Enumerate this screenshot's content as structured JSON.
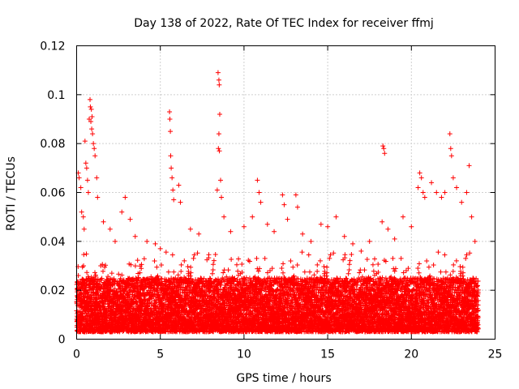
{
  "chart_data": {
    "type": "scatter",
    "title": "Day 138 of 2022, Rate Of TEC Index for receiver ffmj",
    "xlabel": "GPS time / hours",
    "ylabel": "ROTI / TECUs",
    "xlim": [
      0,
      25
    ],
    "ylim": [
      0,
      0.12
    ],
    "xticks": [
      "0",
      "5",
      "10",
      "15",
      "20",
      "25"
    ],
    "yticks": [
      "0",
      "0.02",
      "0.04",
      "0.06",
      "0.08",
      "0.1",
      "0.12"
    ],
    "grid": true,
    "marker": "+",
    "color": "#ff0000",
    "x_range_of_data": [
      0,
      24
    ],
    "baseline_band": [
      0.003,
      0.025
    ],
    "points": [
      [
        0.1,
        0.068
      ],
      [
        0.15,
        0.066
      ],
      [
        0.25,
        0.062
      ],
      [
        0.3,
        0.052
      ],
      [
        0.4,
        0.05
      ],
      [
        0.45,
        0.045
      ],
      [
        0.5,
        0.081
      ],
      [
        0.55,
        0.072
      ],
      [
        0.6,
        0.07
      ],
      [
        0.65,
        0.065
      ],
      [
        0.7,
        0.06
      ],
      [
        0.75,
        0.09
      ],
      [
        0.8,
        0.098
      ],
      [
        0.82,
        0.095
      ],
      [
        0.85,
        0.089
      ],
      [
        0.9,
        0.086
      ],
      [
        0.95,
        0.084
      ],
      [
        1.0,
        0.08
      ],
      [
        1.05,
        0.078
      ],
      [
        1.1,
        0.075
      ],
      [
        1.2,
        0.066
      ],
      [
        1.25,
        0.058
      ],
      [
        0.88,
        0.094
      ],
      [
        0.92,
        0.091
      ],
      [
        1.6,
        0.048
      ],
      [
        2.0,
        0.045
      ],
      [
        2.3,
        0.04
      ],
      [
        2.7,
        0.052
      ],
      [
        2.9,
        0.058
      ],
      [
        3.2,
        0.049
      ],
      [
        3.5,
        0.042
      ],
      [
        4.2,
        0.04
      ],
      [
        4.7,
        0.039
      ],
      [
        5.0,
        0.037
      ],
      [
        5.55,
        0.093
      ],
      [
        5.57,
        0.09
      ],
      [
        5.6,
        0.085
      ],
      [
        5.62,
        0.075
      ],
      [
        5.65,
        0.07
      ],
      [
        5.7,
        0.066
      ],
      [
        5.75,
        0.061
      ],
      [
        5.8,
        0.057
      ],
      [
        6.1,
        0.063
      ],
      [
        6.2,
        0.056
      ],
      [
        6.8,
        0.045
      ],
      [
        7.3,
        0.043
      ],
      [
        8.45,
        0.109
      ],
      [
        8.5,
        0.106
      ],
      [
        8.52,
        0.104
      ],
      [
        8.55,
        0.092
      ],
      [
        8.5,
        0.084
      ],
      [
        8.47,
        0.078
      ],
      [
        8.53,
        0.077
      ],
      [
        8.6,
        0.065
      ],
      [
        8.65,
        0.058
      ],
      [
        8.4,
        0.061
      ],
      [
        8.8,
        0.05
      ],
      [
        9.2,
        0.044
      ],
      [
        10.0,
        0.046
      ],
      [
        10.5,
        0.05
      ],
      [
        10.8,
        0.065
      ],
      [
        10.9,
        0.06
      ],
      [
        11.0,
        0.056
      ],
      [
        11.4,
        0.047
      ],
      [
        11.8,
        0.044
      ],
      [
        12.3,
        0.059
      ],
      [
        12.4,
        0.055
      ],
      [
        12.6,
        0.049
      ],
      [
        13.1,
        0.059
      ],
      [
        13.2,
        0.054
      ],
      [
        13.5,
        0.043
      ],
      [
        14.0,
        0.04
      ],
      [
        14.6,
        0.047
      ],
      [
        15.0,
        0.046
      ],
      [
        15.5,
        0.05
      ],
      [
        16.0,
        0.042
      ],
      [
        16.5,
        0.039
      ],
      [
        17.0,
        0.036
      ],
      [
        17.5,
        0.04
      ],
      [
        18.3,
        0.079
      ],
      [
        18.35,
        0.078
      ],
      [
        18.4,
        0.076
      ],
      [
        18.25,
        0.048
      ],
      [
        18.6,
        0.045
      ],
      [
        19.0,
        0.041
      ],
      [
        19.5,
        0.05
      ],
      [
        20.0,
        0.046
      ],
      [
        20.4,
        0.062
      ],
      [
        20.5,
        0.068
      ],
      [
        20.6,
        0.066
      ],
      [
        20.7,
        0.06
      ],
      [
        20.8,
        0.058
      ],
      [
        21.2,
        0.064
      ],
      [
        21.5,
        0.06
      ],
      [
        21.8,
        0.058
      ],
      [
        22.0,
        0.06
      ],
      [
        22.3,
        0.084
      ],
      [
        22.35,
        0.078
      ],
      [
        22.4,
        0.075
      ],
      [
        22.5,
        0.066
      ],
      [
        22.7,
        0.062
      ],
      [
        23.0,
        0.056
      ],
      [
        23.3,
        0.06
      ],
      [
        23.45,
        0.071
      ],
      [
        23.6,
        0.05
      ],
      [
        23.8,
        0.04
      ]
    ]
  }
}
